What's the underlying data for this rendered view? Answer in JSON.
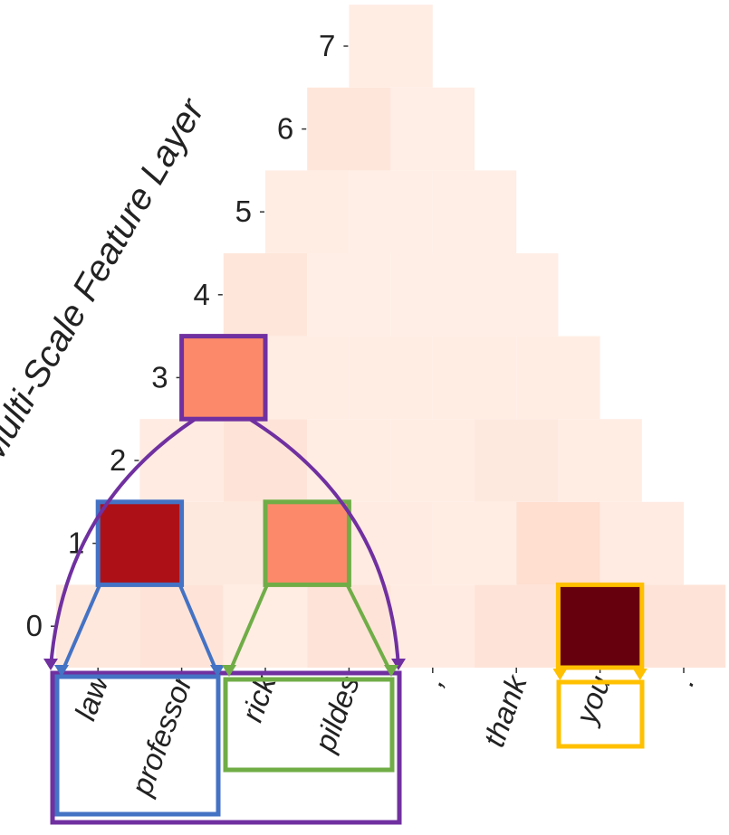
{
  "chart_data": {
    "type": "heatmap",
    "title": "",
    "xlabel": "",
    "ylabel": "Multi-Scale Feature Layer",
    "tokens": [
      "law",
      "professor",
      "rick",
      "pildes",
      ",",
      "thank",
      "you",
      "."
    ],
    "layers": [
      "0",
      "1",
      "2",
      "3",
      "4",
      "5",
      "6",
      "7"
    ],
    "color_scale": "Reds",
    "rows": [
      [
        0.08,
        0.1,
        0.05,
        0.1,
        0.06,
        0.1,
        1.0,
        0.1
      ],
      [
        0.85,
        0.07,
        0.4,
        0.06,
        0.05,
        0.13,
        0.06
      ],
      [
        0.06,
        0.1,
        0.05,
        0.05,
        0.07,
        0.05
      ],
      [
        0.4,
        0.05,
        0.05,
        0.05,
        0.05
      ],
      [
        0.09,
        0.04,
        0.04,
        0.04
      ],
      [
        0.05,
        0.04,
        0.04
      ],
      [
        0.09,
        0.04
      ],
      [
        0.05
      ]
    ],
    "colors": {
      "group_purple": "#7030a0",
      "group_blue": "#4472c4",
      "group_green": "#70ad47",
      "group_yellow": "#ffc000"
    },
    "highlights": [
      {
        "layer": 3,
        "cell": 0,
        "color": "purple",
        "token_span": [
          0,
          3
        ]
      },
      {
        "layer": 1,
        "cell": 0,
        "color": "blue",
        "token_span": [
          0,
          1
        ]
      },
      {
        "layer": 1,
        "cell": 2,
        "color": "green",
        "token_span": [
          2,
          3
        ]
      },
      {
        "layer": 0,
        "cell": 6,
        "color": "yellow",
        "token_span": [
          6,
          6
        ]
      }
    ]
  }
}
